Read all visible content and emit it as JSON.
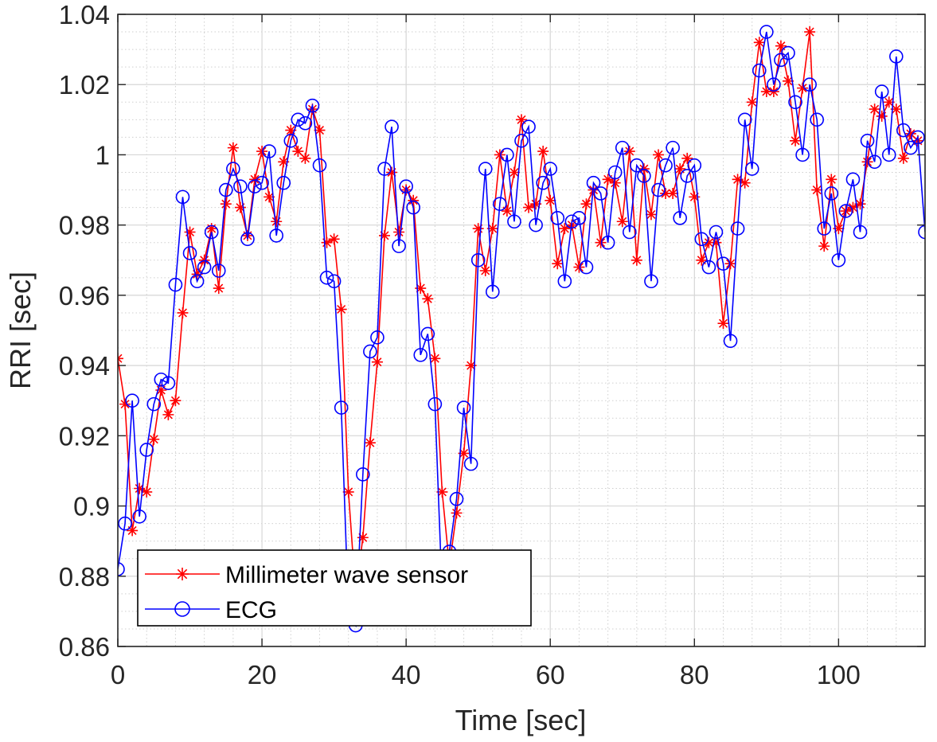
{
  "chart_data": {
    "type": "line",
    "xlabel": "Time [sec]",
    "ylabel": "RRI [sec]",
    "xlim": [
      0,
      112
    ],
    "ylim": [
      0.86,
      1.04
    ],
    "xticks": [
      0,
      20,
      40,
      60,
      80,
      100
    ],
    "yticks": [
      0.86,
      0.88,
      0.9,
      0.92,
      0.94,
      0.96,
      0.98,
      1,
      1.02,
      1.04
    ],
    "xtick_labels": [
      "0",
      "20",
      "40",
      "60",
      "80",
      "100"
    ],
    "ytick_labels": [
      "0.86",
      "0.88",
      "0.9",
      "0.92",
      "0.94",
      "0.96",
      "0.98",
      "1",
      "1.02",
      "1.04"
    ],
    "grid": "major-and-minor",
    "legend_position": "bottom-left",
    "series": [
      {
        "name": "Millimeter wave sensor",
        "color": "#ff0000",
        "marker": "asterisk",
        "x": [
          0,
          1,
          2,
          3,
          4,
          5,
          6,
          7,
          8,
          9,
          10,
          11,
          12,
          13,
          14,
          15,
          16,
          17,
          18,
          19,
          20,
          21,
          22,
          23,
          24,
          25,
          26,
          27,
          28,
          29,
          30,
          31,
          32,
          33,
          34,
          35,
          36,
          37,
          38,
          39,
          40,
          41,
          42,
          43,
          44,
          45,
          46,
          47,
          48,
          49,
          50,
          51,
          52,
          53,
          54,
          55,
          56,
          57,
          58,
          59,
          60,
          61,
          62,
          63,
          64,
          65,
          66,
          67,
          68,
          69,
          70,
          71,
          72,
          73,
          74,
          75,
          76,
          77,
          78,
          79,
          80,
          81,
          82,
          83,
          84,
          85,
          86,
          87,
          88,
          89,
          90,
          91,
          92,
          93,
          94,
          95,
          96,
          97,
          98,
          99,
          100,
          101,
          102,
          103,
          104,
          105,
          106,
          107,
          108,
          109,
          110,
          111
        ],
        "y": [
          0.942,
          0.929,
          0.893,
          0.905,
          0.904,
          0.919,
          0.933,
          0.926,
          0.93,
          0.955,
          0.978,
          0.966,
          0.97,
          0.979,
          0.962,
          0.986,
          1.002,
          0.985,
          0.977,
          0.993,
          1.001,
          0.988,
          0.981,
          0.998,
          1.007,
          1.001,
          0.999,
          1.013,
          1.007,
          0.975,
          0.976,
          0.956,
          0.904,
          0.875,
          0.891,
          0.918,
          0.941,
          0.977,
          0.995,
          0.978,
          0.99,
          0.987,
          0.962,
          0.959,
          0.942,
          0.904,
          0.883,
          0.898,
          0.915,
          0.94,
          0.979,
          0.967,
          0.979,
          1.0,
          0.984,
          0.995,
          1.01,
          0.985,
          0.986,
          1.001,
          0.987,
          0.969,
          0.979,
          0.98,
          0.968,
          0.986,
          0.99,
          0.975,
          0.993,
          0.992,
          0.981,
          1.001,
          0.97,
          0.996,
          0.983,
          1.0,
          0.989,
          0.989,
          0.996,
          0.999,
          0.988,
          0.97,
          0.975,
          0.975,
          0.952,
          0.969,
          0.993,
          0.992,
          1.015,
          1.032,
          1.018,
          1.018,
          1.031,
          1.021,
          1.004,
          1.019,
          1.035,
          0.99,
          0.974,
          0.993,
          0.979,
          0.984,
          0.985,
          0.986,
          0.998,
          1.013,
          1.011,
          1.015,
          1.013,
          0.999,
          1.006,
          1.004
        ]
      },
      {
        "name": "ECG",
        "color": "#0000ff",
        "marker": "circle",
        "x": [
          0,
          1,
          2,
          3,
          4,
          5,
          6,
          7,
          8,
          9,
          10,
          11,
          12,
          13,
          14,
          15,
          16,
          17,
          18,
          19,
          20,
          21,
          22,
          23,
          24,
          25,
          26,
          27,
          28,
          29,
          30,
          31,
          32,
          33,
          34,
          35,
          36,
          37,
          38,
          39,
          40,
          41,
          42,
          43,
          44,
          45,
          46,
          47,
          48,
          49,
          50,
          51,
          52,
          53,
          54,
          55,
          56,
          57,
          58,
          59,
          60,
          61,
          62,
          63,
          64,
          65,
          66,
          67,
          68,
          69,
          70,
          71,
          72,
          73,
          74,
          75,
          76,
          77,
          78,
          79,
          80,
          81,
          82,
          83,
          84,
          85,
          86,
          87,
          88,
          89,
          90,
          91,
          92,
          93,
          94,
          95,
          96,
          97,
          98,
          99,
          100,
          101,
          102,
          103,
          104,
          105,
          106,
          107,
          108,
          109,
          110,
          111,
          112
        ],
        "y": [
          0.882,
          0.895,
          0.93,
          0.897,
          0.916,
          0.929,
          0.936,
          0.935,
          0.963,
          0.988,
          0.972,
          0.964,
          0.968,
          0.978,
          0.967,
          0.99,
          0.996,
          0.991,
          0.976,
          0.991,
          0.992,
          1.001,
          0.977,
          0.992,
          1.004,
          1.01,
          1.009,
          1.014,
          0.997,
          0.965,
          0.964,
          0.928,
          0.87,
          0.866,
          0.909,
          0.944,
          0.948,
          0.996,
          1.008,
          0.974,
          0.991,
          0.985,
          0.943,
          0.949,
          0.929,
          0.875,
          0.887,
          0.902,
          0.928,
          0.912,
          0.97,
          0.996,
          0.961,
          0.986,
          1.0,
          0.981,
          1.004,
          1.008,
          0.98,
          0.992,
          0.996,
          0.982,
          0.964,
          0.981,
          0.982,
          0.968,
          0.992,
          0.989,
          0.975,
          0.995,
          1.002,
          0.978,
          0.997,
          0.994,
          0.964,
          0.99,
          0.997,
          1.002,
          0.982,
          0.994,
          0.997,
          0.976,
          0.968,
          0.978,
          0.969,
          0.947,
          0.979,
          1.01,
          0.996,
          1.024,
          1.035,
          1.02,
          1.027,
          1.029,
          1.015,
          1.0,
          1.02,
          1.01,
          0.979,
          0.989,
          0.97,
          0.984,
          0.993,
          0.978,
          1.004,
          0.998,
          1.018,
          1.0,
          1.028,
          1.007,
          1.002,
          1.005,
          0.978
        ]
      }
    ]
  }
}
